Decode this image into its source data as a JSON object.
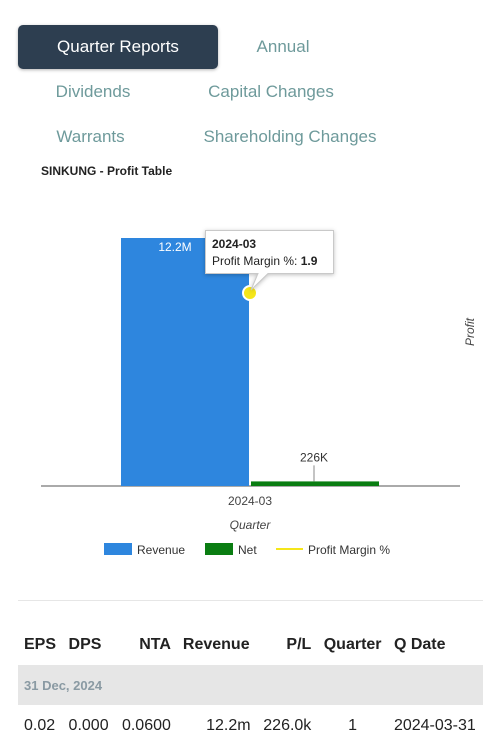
{
  "tabs": [
    "Quarter Reports",
    "Annual",
    "Dividends",
    "Capital Changes",
    "Warrants",
    "Shareholding Changes"
  ],
  "section_title": "SINKUNG - Profit Table",
  "chart_data": {
    "type": "bar",
    "title": "",
    "categories": [
      "2024-03"
    ],
    "series": [
      {
        "name": "Revenue",
        "values": [
          12200000
        ],
        "labels": [
          "12.2M"
        ],
        "color": "#2e86de",
        "axis": "left"
      },
      {
        "name": "Net",
        "values": [
          226000
        ],
        "labels": [
          "226K"
        ],
        "color": "#0a7d12",
        "axis": "left"
      },
      {
        "name": "Profit Margin %",
        "values": [
          1.9
        ],
        "color": "#f5e61a",
        "axis": "right",
        "type": "line"
      }
    ],
    "xlabel": "Quarter",
    "ylabel_right": "Profit",
    "ylim": [
      0,
      12200000
    ],
    "legend_position": "bottom",
    "tooltip": {
      "category": "2024-03",
      "label": "Profit Margin %: ",
      "value": "1.9"
    }
  },
  "table": {
    "columns": [
      "EPS",
      "DPS",
      "NTA",
      "Revenue",
      "P/L",
      "Quarter",
      "Q Date"
    ],
    "groups": [
      {
        "label": "31 Dec, 2024",
        "rows": [
          {
            "eps": "0.02",
            "dps": "0.000",
            "nta": "0.0600",
            "revenue": "12.2m",
            "pl": "226.0k",
            "quarter": "1",
            "qdate": "2024-03-31"
          }
        ]
      }
    ],
    "colors": {
      "pl_positive": "#3aa37b"
    }
  }
}
